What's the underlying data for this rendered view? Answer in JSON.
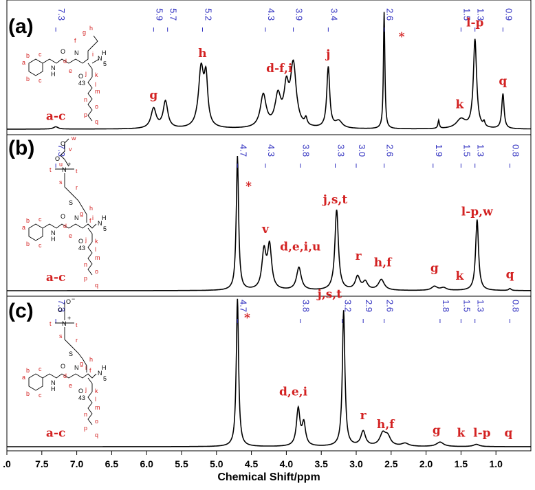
{
  "chart_data": {
    "type": "line",
    "xlabel": "Chemical Shift/ppm",
    "x_ticks": [
      ".0",
      "7.5",
      "7.0",
      "6.5",
      "6.0",
      "5.5",
      "5.0",
      "4.5",
      "4.0",
      "3.5",
      "3.0",
      "2.5",
      "2.0",
      "1.5",
      "1.0"
    ],
    "xlim": [
      8.0,
      0.5
    ],
    "x_reversed": true,
    "grid": false,
    "legend": "none",
    "colors": {
      "spectrum": "#000000",
      "peak_labels": "#d32222",
      "shift_labels": "#3030c0"
    },
    "panels": [
      {
        "label": "(a)",
        "shift_labels": [
          "7.3",
          "5.9",
          "5.7",
          "5.2",
          "4.3",
          "3.9",
          "3.4",
          "2.6",
          "1.5",
          "1.3",
          "0.9"
        ],
        "shift_positions": [
          7.3,
          5.9,
          5.7,
          5.2,
          4.3,
          3.9,
          3.4,
          2.6,
          1.5,
          1.3,
          0.9
        ],
        "peak_labels": [
          {
            "text": "a-c",
            "x": 7.3,
            "h": 0.02
          },
          {
            "text": "g",
            "x": 5.9,
            "h": 0.2
          },
          {
            "text": "h",
            "x": 5.2,
            "h": 0.56
          },
          {
            "text": "d-f,i",
            "x": 4.1,
            "h": 0.43
          },
          {
            "text": "j",
            "x": 3.4,
            "h": 0.55
          },
          {
            "text": "*",
            "x": 2.35,
            "h": 0.7
          },
          {
            "text": "l-p",
            "x": 1.3,
            "h": 0.82
          },
          {
            "text": "k",
            "x": 1.52,
            "h": 0.12
          },
          {
            "text": "q",
            "x": 0.9,
            "h": 0.32
          }
        ],
        "peaks": [
          {
            "x": 7.3,
            "h": 0.02,
            "w": 0.04
          },
          {
            "x": 5.9,
            "h": 0.17,
            "w": 0.045
          },
          {
            "x": 5.73,
            "h": 0.23,
            "w": 0.04
          },
          {
            "x": 5.22,
            "h": 0.5,
            "w": 0.045
          },
          {
            "x": 5.15,
            "h": 0.38,
            "w": 0.03
          },
          {
            "x": 4.33,
            "h": 0.28,
            "w": 0.05
          },
          {
            "x": 4.12,
            "h": 0.26,
            "w": 0.05
          },
          {
            "x": 4.0,
            "h": 0.3,
            "w": 0.04
          },
          {
            "x": 3.9,
            "h": 0.53,
            "w": 0.05
          },
          {
            "x": 3.72,
            "h": 0.06,
            "w": 0.02
          },
          {
            "x": 3.4,
            "h": 0.52,
            "w": 0.025
          },
          {
            "x": 3.25,
            "h": 0.06,
            "w": 0.06
          },
          {
            "x": 2.6,
            "h": 1.0,
            "w": 0.012
          },
          {
            "x": 1.82,
            "h": 0.07,
            "w": 0.012
          },
          {
            "x": 1.5,
            "h": 0.08,
            "w": 0.08
          },
          {
            "x": 1.3,
            "h": 0.76,
            "w": 0.028
          },
          {
            "x": 1.17,
            "h": 0.04,
            "w": 0.015
          },
          {
            "x": 0.9,
            "h": 0.3,
            "w": 0.02
          }
        ]
      },
      {
        "label": "(b)",
        "shift_labels": [
          "7.3",
          "4.7",
          "4.3",
          "3.8",
          "3.3",
          "3.0",
          "2.6",
          "1.9",
          "1.5",
          "1.3",
          "0.8"
        ],
        "shift_positions": [
          7.3,
          4.7,
          4.3,
          3.8,
          3.3,
          3.0,
          2.6,
          1.9,
          1.5,
          1.3,
          0.8
        ],
        "peak_labels": [
          {
            "text": "a-c",
            "x": 7.3,
            "h": 0.02
          },
          {
            "text": "*",
            "x": 4.54,
            "h": 0.7
          },
          {
            "text": "v",
            "x": 4.3,
            "h": 0.38
          },
          {
            "text": "d,e,i,u",
            "x": 3.8,
            "h": 0.25
          },
          {
            "text": "j,s,t",
            "x": 3.3,
            "h": 0.6
          },
          {
            "text": "r",
            "x": 2.97,
            "h": 0.18
          },
          {
            "text": "h,f",
            "x": 2.62,
            "h": 0.13
          },
          {
            "text": "g",
            "x": 1.88,
            "h": 0.09
          },
          {
            "text": "k",
            "x": 1.52,
            "h": 0.03
          },
          {
            "text": "l-p,w",
            "x": 1.27,
            "h": 0.51
          },
          {
            "text": "q",
            "x": 0.8,
            "h": 0.04
          }
        ],
        "peaks": [
          {
            "x": 4.7,
            "h": 1.0,
            "w": 0.02
          },
          {
            "x": 4.32,
            "h": 0.28,
            "w": 0.035
          },
          {
            "x": 4.24,
            "h": 0.32,
            "w": 0.035
          },
          {
            "x": 3.82,
            "h": 0.17,
            "w": 0.04
          },
          {
            "x": 3.28,
            "h": 0.6,
            "w": 0.03
          },
          {
            "x": 2.98,
            "h": 0.1,
            "w": 0.04
          },
          {
            "x": 2.87,
            "h": 0.06,
            "w": 0.04
          },
          {
            "x": 2.64,
            "h": 0.08,
            "w": 0.05
          },
          {
            "x": 1.88,
            "h": 0.03,
            "w": 0.05
          },
          {
            "x": 1.75,
            "h": 0.02,
            "w": 0.05
          },
          {
            "x": 1.27,
            "h": 0.53,
            "w": 0.025
          },
          {
            "x": 0.8,
            "h": 0.015,
            "w": 0.02
          }
        ]
      },
      {
        "label": "(c)",
        "shift_labels": [
          "7.3",
          "4.7",
          "3.8",
          "3.2",
          "2.9",
          "2.6",
          "1.8",
          "1.5",
          "1.3",
          "0.8"
        ],
        "shift_positions": [
          7.3,
          4.7,
          3.8,
          3.2,
          2.9,
          2.6,
          1.8,
          1.5,
          1.3,
          0.8
        ],
        "peak_labels": [
          {
            "text": "a-c",
            "x": 7.3,
            "h": 0.02
          },
          {
            "text": "*",
            "x": 4.56,
            "h": 0.8
          },
          {
            "text": "d,e,i",
            "x": 3.9,
            "h": 0.3
          },
          {
            "text": "j,s,t",
            "x": 3.38,
            "h": 0.96
          },
          {
            "text": "r",
            "x": 2.9,
            "h": 0.14
          },
          {
            "text": "h,f",
            "x": 2.58,
            "h": 0.08
          },
          {
            "text": "g",
            "x": 1.85,
            "h": 0.04
          },
          {
            "text": "k",
            "x": 1.5,
            "h": 0.02
          },
          {
            "text": "l-p",
            "x": 1.2,
            "h": 0.02
          },
          {
            "text": "q",
            "x": 0.82,
            "h": 0.02
          }
        ],
        "peaks": [
          {
            "x": 4.7,
            "h": 1.0,
            "w": 0.02
          },
          {
            "x": 3.83,
            "h": 0.25,
            "w": 0.03
          },
          {
            "x": 3.75,
            "h": 0.15,
            "w": 0.03
          },
          {
            "x": 3.18,
            "h": 0.92,
            "w": 0.022
          },
          {
            "x": 2.9,
            "h": 0.1,
            "w": 0.04
          },
          {
            "x": 2.62,
            "h": 0.08,
            "w": 0.05
          },
          {
            "x": 2.55,
            "h": 0.06,
            "w": 0.05
          },
          {
            "x": 2.3,
            "h": 0.02,
            "w": 0.06
          },
          {
            "x": 1.8,
            "h": 0.03,
            "w": 0.06
          },
          {
            "x": 1.28,
            "h": 0.015,
            "w": 0.05
          }
        ]
      }
    ]
  },
  "structures": {
    "a": {
      "ring": [
        "a",
        "b",
        "b",
        "c",
        "c"
      ],
      "atoms": [
        "N",
        "H",
        "O",
        "N",
        "O",
        "N",
        "H",
        "5"
      ],
      "sites": [
        "d",
        "e",
        "f",
        "g",
        "h",
        "i",
        "j",
        "k",
        "l",
        "m",
        "n",
        "o",
        "p",
        "q"
      ],
      "repeat": "43"
    },
    "b": {
      "ring": [
        "a",
        "b",
        "b",
        "c",
        "c"
      ],
      "atoms": [
        "O",
        "O",
        "N",
        "+",
        "S",
        "N",
        "H",
        "O",
        "N",
        "O",
        "N",
        "H",
        "5"
      ],
      "sites": [
        "w",
        "v",
        "u",
        "t",
        "t",
        "s",
        "r",
        "h",
        "g",
        "f",
        "d",
        "e",
        "i",
        "j",
        "k",
        "l",
        "m",
        "n",
        "o",
        "p",
        "q"
      ],
      "repeat": "43"
    },
    "c": {
      "ring": [
        "a",
        "b",
        "b",
        "c",
        "c"
      ],
      "atoms": [
        "O",
        "−",
        "O",
        "N",
        "+",
        "S",
        "N",
        "H",
        "O",
        "N",
        "O",
        "N",
        "H",
        "5"
      ],
      "sites": [
        "t",
        "t",
        "s",
        "r",
        "h",
        "g",
        "f",
        "d",
        "e",
        "i",
        "j",
        "k",
        "l",
        "m",
        "n",
        "o",
        "p",
        "q"
      ],
      "repeat": "43"
    }
  }
}
